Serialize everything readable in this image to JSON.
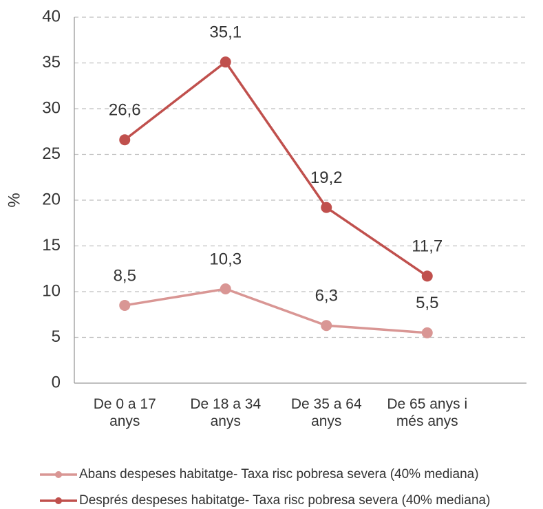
{
  "chart_data": {
    "type": "line",
    "y_label": "%",
    "categories": [
      "De 0 a 17\nanys",
      "De 18 a 34\nanys",
      "De 35 a 64\nanys",
      "De 65 anys i\nmés anys"
    ],
    "series": [
      {
        "name": "Abans despeses habitatge- Taxa risc pobresa severa (40% mediana)",
        "color": "#d99694",
        "values": [
          8.5,
          10.3,
          6.3,
          5.5
        ],
        "value_labels": [
          "8,5",
          "10,3",
          "6,3",
          "5,5"
        ]
      },
      {
        "name": "Després despeses habitatge- Taxa risc pobresa severa (40% mediana)",
        "color": "#c0504d",
        "values": [
          26.6,
          35.1,
          19.2,
          11.7
        ],
        "value_labels": [
          "26,6",
          "35,1",
          "19,2",
          "11,7"
        ]
      }
    ],
    "ylim": [
      0,
      40
    ],
    "yticks": [
      0,
      5,
      10,
      15,
      20,
      25,
      30,
      35,
      40
    ],
    "grid": true
  }
}
